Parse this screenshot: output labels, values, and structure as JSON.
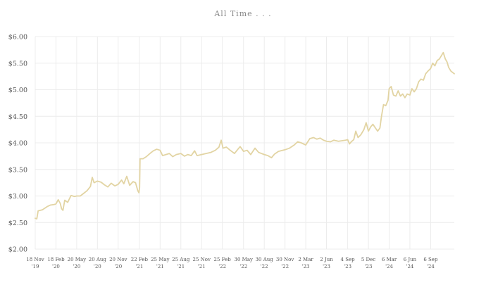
{
  "chart_data": {
    "type": "line",
    "title": "All Time . . .",
    "xlabel": "",
    "ylabel": "",
    "ylim": [
      2.0,
      6.0
    ],
    "y_ticks": [
      2.0,
      2.5,
      3.0,
      3.5,
      4.0,
      4.5,
      5.0,
      5.5,
      6.0
    ],
    "y_tick_labels": [
      "$2.00",
      "$2.50",
      "$3.00",
      "$3.50",
      "$4.00",
      "$4.50",
      "$5.00",
      "$5.50",
      "$6.00"
    ],
    "xlim": [
      "2019-11-18",
      "2024-12-20"
    ],
    "x_ticks": [
      {
        "date": "2019-11-18",
        "line1": "18 Nov",
        "line2": "'19"
      },
      {
        "date": "2020-02-18",
        "line1": "18 Feb",
        "line2": "'20"
      },
      {
        "date": "2020-05-20",
        "line1": "20 May",
        "line2": "'20"
      },
      {
        "date": "2020-08-20",
        "line1": "20 Aug",
        "line2": "'20"
      },
      {
        "date": "2020-11-20",
        "line1": "20 Nov",
        "line2": "'20"
      },
      {
        "date": "2021-02-22",
        "line1": "22 Feb",
        "line2": "'21"
      },
      {
        "date": "2021-05-25",
        "line1": "25 May",
        "line2": "'21"
      },
      {
        "date": "2021-08-25",
        "line1": "25 Aug",
        "line2": "'21"
      },
      {
        "date": "2021-11-25",
        "line1": "25 Nov",
        "line2": "'21"
      },
      {
        "date": "2022-02-25",
        "line1": "25 Feb",
        "line2": "'22"
      },
      {
        "date": "2022-05-30",
        "line1": "30 May",
        "line2": "'22"
      },
      {
        "date": "2022-08-30",
        "line1": "30 Aug",
        "line2": "'22"
      },
      {
        "date": "2022-11-30",
        "line1": "30 Nov",
        "line2": "'22"
      },
      {
        "date": "2023-03-02",
        "line1": "2 Mar",
        "line2": "'23"
      },
      {
        "date": "2023-06-02",
        "line1": "2 Jun",
        "line2": "'23"
      },
      {
        "date": "2023-09-04",
        "line1": "4 Sep",
        "line2": "'23"
      },
      {
        "date": "2023-12-05",
        "line1": "5 Dec",
        "line2": "'23"
      },
      {
        "date": "2024-03-06",
        "line1": "6 Mar",
        "line2": "'24"
      },
      {
        "date": "2024-06-06",
        "line1": "6 Jun",
        "line2": "'24"
      },
      {
        "date": "2024-09-06",
        "line1": "6 Sep",
        "line2": "'24"
      }
    ],
    "grid": true,
    "legend": "none",
    "line_color": "#e2d4a3",
    "grid_color": "#ececec",
    "series": [
      {
        "points": [
          [
            "2019-11-18",
            2.58
          ],
          [
            "2019-11-25",
            2.57
          ],
          [
            "2019-12-01",
            2.72
          ],
          [
            "2019-12-20",
            2.74
          ],
          [
            "2020-01-10",
            2.8
          ],
          [
            "2020-01-25",
            2.83
          ],
          [
            "2020-02-10",
            2.84
          ],
          [
            "2020-02-18",
            2.85
          ],
          [
            "2020-02-28",
            2.93
          ],
          [
            "2020-03-08",
            2.86
          ],
          [
            "2020-03-14",
            2.76
          ],
          [
            "2020-03-20",
            2.73
          ],
          [
            "2020-03-28",
            2.92
          ],
          [
            "2020-04-10",
            2.88
          ],
          [
            "2020-04-25",
            3.01
          ],
          [
            "2020-05-10",
            2.99
          ],
          [
            "2020-05-20",
            3.0
          ],
          [
            "2020-06-05",
            3.0
          ],
          [
            "2020-06-20",
            3.05
          ],
          [
            "2020-07-05",
            3.1
          ],
          [
            "2020-07-20",
            3.18
          ],
          [
            "2020-07-28",
            3.35
          ],
          [
            "2020-08-05",
            3.25
          ],
          [
            "2020-08-20",
            3.28
          ],
          [
            "2020-09-05",
            3.26
          ],
          [
            "2020-09-20",
            3.21
          ],
          [
            "2020-10-05",
            3.17
          ],
          [
            "2020-10-20",
            3.24
          ],
          [
            "2020-11-05",
            3.19
          ],
          [
            "2020-11-20",
            3.22
          ],
          [
            "2020-12-05",
            3.3
          ],
          [
            "2020-12-15",
            3.23
          ],
          [
            "2020-12-28",
            3.37
          ],
          [
            "2021-01-10",
            3.2
          ],
          [
            "2021-01-25",
            3.27
          ],
          [
            "2021-02-05",
            3.25
          ],
          [
            "2021-02-15",
            3.1
          ],
          [
            "2021-02-20",
            3.06
          ],
          [
            "2021-02-23",
            3.16
          ],
          [
            "2021-02-25",
            3.7
          ],
          [
            "2021-03-10",
            3.7
          ],
          [
            "2021-03-25",
            3.74
          ],
          [
            "2021-04-10",
            3.8
          ],
          [
            "2021-04-25",
            3.85
          ],
          [
            "2021-05-10",
            3.88
          ],
          [
            "2021-05-25",
            3.86
          ],
          [
            "2021-06-05",
            3.76
          ],
          [
            "2021-06-20",
            3.78
          ],
          [
            "2021-07-05",
            3.8
          ],
          [
            "2021-07-20",
            3.74
          ],
          [
            "2021-08-05",
            3.78
          ],
          [
            "2021-08-25",
            3.8
          ],
          [
            "2021-09-10",
            3.75
          ],
          [
            "2021-09-25",
            3.78
          ],
          [
            "2021-10-10",
            3.76
          ],
          [
            "2021-10-25",
            3.85
          ],
          [
            "2021-11-05",
            3.76
          ],
          [
            "2021-11-25",
            3.78
          ],
          [
            "2021-12-15",
            3.8
          ],
          [
            "2022-01-05",
            3.82
          ],
          [
            "2022-01-25",
            3.86
          ],
          [
            "2022-02-10",
            3.92
          ],
          [
            "2022-02-20",
            4.05
          ],
          [
            "2022-02-28",
            3.9
          ],
          [
            "2022-03-15",
            3.92
          ],
          [
            "2022-04-01",
            3.86
          ],
          [
            "2022-04-20",
            3.8
          ],
          [
            "2022-05-05",
            3.88
          ],
          [
            "2022-05-15",
            3.93
          ],
          [
            "2022-05-30",
            3.84
          ],
          [
            "2022-06-15",
            3.86
          ],
          [
            "2022-07-01",
            3.78
          ],
          [
            "2022-07-20",
            3.9
          ],
          [
            "2022-08-05",
            3.82
          ],
          [
            "2022-08-30",
            3.78
          ],
          [
            "2022-09-15",
            3.76
          ],
          [
            "2022-10-01",
            3.72
          ],
          [
            "2022-10-15",
            3.79
          ],
          [
            "2022-11-01",
            3.84
          ],
          [
            "2022-11-30",
            3.87
          ],
          [
            "2022-12-20",
            3.9
          ],
          [
            "2023-01-10",
            3.96
          ],
          [
            "2023-01-25",
            4.02
          ],
          [
            "2023-02-10",
            4.0
          ],
          [
            "2023-03-02",
            3.96
          ],
          [
            "2023-03-20",
            4.08
          ],
          [
            "2023-04-05",
            4.1
          ],
          [
            "2023-04-20",
            4.07
          ],
          [
            "2023-05-05",
            4.09
          ],
          [
            "2023-05-20",
            4.05
          ],
          [
            "2023-06-02",
            4.03
          ],
          [
            "2023-06-20",
            4.02
          ],
          [
            "2023-07-05",
            4.05
          ],
          [
            "2023-07-25",
            4.03
          ],
          [
            "2023-08-10",
            4.04
          ],
          [
            "2023-08-25",
            4.05
          ],
          [
            "2023-09-04",
            4.06
          ],
          [
            "2023-09-12",
            3.98
          ],
          [
            "2023-09-20",
            4.02
          ],
          [
            "2023-10-01",
            4.06
          ],
          [
            "2023-10-10",
            4.22
          ],
          [
            "2023-10-20",
            4.1
          ],
          [
            "2023-11-01",
            4.15
          ],
          [
            "2023-11-15",
            4.25
          ],
          [
            "2023-11-25",
            4.38
          ],
          [
            "2023-12-05",
            4.22
          ],
          [
            "2023-12-15",
            4.3
          ],
          [
            "2023-12-25",
            4.35
          ],
          [
            "2024-01-05",
            4.28
          ],
          [
            "2024-01-15",
            4.22
          ],
          [
            "2024-01-25",
            4.28
          ],
          [
            "2024-02-01",
            4.5
          ],
          [
            "2024-02-10",
            4.72
          ],
          [
            "2024-02-20",
            4.7
          ],
          [
            "2024-03-01",
            4.8
          ],
          [
            "2024-03-06",
            5.02
          ],
          [
            "2024-03-15",
            5.06
          ],
          [
            "2024-03-25",
            4.9
          ],
          [
            "2024-04-05",
            4.88
          ],
          [
            "2024-04-15",
            4.98
          ],
          [
            "2024-04-25",
            4.88
          ],
          [
            "2024-05-05",
            4.92
          ],
          [
            "2024-05-15",
            4.85
          ],
          [
            "2024-05-25",
            4.92
          ],
          [
            "2024-06-06",
            4.9
          ],
          [
            "2024-06-15",
            5.02
          ],
          [
            "2024-06-25",
            4.96
          ],
          [
            "2024-07-05",
            5.02
          ],
          [
            "2024-07-15",
            5.15
          ],
          [
            "2024-07-25",
            5.2
          ],
          [
            "2024-08-05",
            5.18
          ],
          [
            "2024-08-15",
            5.3
          ],
          [
            "2024-08-25",
            5.35
          ],
          [
            "2024-09-06",
            5.4
          ],
          [
            "2024-09-15",
            5.5
          ],
          [
            "2024-09-25",
            5.45
          ],
          [
            "2024-10-05",
            5.55
          ],
          [
            "2024-10-15",
            5.58
          ],
          [
            "2024-10-25",
            5.65
          ],
          [
            "2024-11-01",
            5.7
          ],
          [
            "2024-11-10",
            5.58
          ],
          [
            "2024-11-18",
            5.52
          ],
          [
            "2024-11-25",
            5.42
          ],
          [
            "2024-12-05",
            5.35
          ],
          [
            "2024-12-20",
            5.3
          ]
        ]
      }
    ]
  }
}
